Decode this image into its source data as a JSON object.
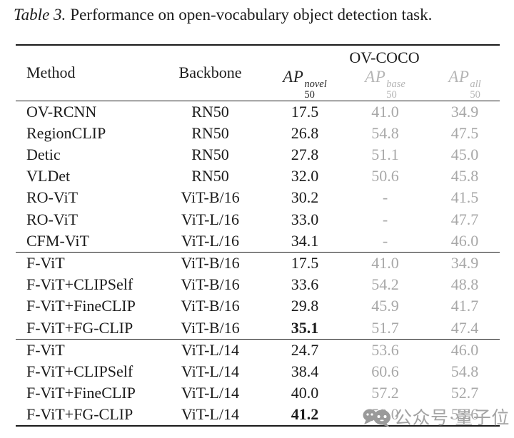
{
  "caption": {
    "label": "Table 3.",
    "text": "Performance on open-vocabulary object detection task."
  },
  "table": {
    "col_method": "Method",
    "col_backbone": "Backbone",
    "group_header": "OV-COCO",
    "ap_columns": [
      {
        "name": "AP",
        "sub": "50",
        "sup": "novel",
        "tone": "dark"
      },
      {
        "name": "AP",
        "sub": "50",
        "sup": "base",
        "tone": "gray"
      },
      {
        "name": "AP",
        "sub": "50",
        "sup": "all",
        "tone": "gray"
      }
    ],
    "sections": [
      {
        "rows": [
          {
            "method": "OV-RCNN",
            "backbone": "RN50",
            "ap_novel": "17.5",
            "ap_base": "41.0",
            "ap_all": "34.9",
            "bold_novel": false
          },
          {
            "method": "RegionCLIP",
            "backbone": "RN50",
            "ap_novel": "26.8",
            "ap_base": "54.8",
            "ap_all": "47.5",
            "bold_novel": false
          },
          {
            "method": "Detic",
            "backbone": "RN50",
            "ap_novel": "27.8",
            "ap_base": "51.1",
            "ap_all": "45.0",
            "bold_novel": false
          },
          {
            "method": "VLDet",
            "backbone": "RN50",
            "ap_novel": "32.0",
            "ap_base": "50.6",
            "ap_all": "45.8",
            "bold_novel": false
          },
          {
            "method": "RO-ViT",
            "backbone": "ViT-B/16",
            "ap_novel": "30.2",
            "ap_base": "-",
            "ap_all": "41.5",
            "bold_novel": false
          },
          {
            "method": "RO-ViT",
            "backbone": "ViT-L/16",
            "ap_novel": "33.0",
            "ap_base": "-",
            "ap_all": "47.7",
            "bold_novel": false
          },
          {
            "method": "CFM-ViT",
            "backbone": "ViT-L/16",
            "ap_novel": "34.1",
            "ap_base": "-",
            "ap_all": "46.0",
            "bold_novel": false
          }
        ]
      },
      {
        "rows": [
          {
            "method": "F-ViT",
            "backbone": "ViT-B/16",
            "ap_novel": "17.5",
            "ap_base": "41.0",
            "ap_all": "34.9",
            "bold_novel": false
          },
          {
            "method": "F-ViT+CLIPSelf",
            "backbone": "ViT-B/16",
            "ap_novel": "33.6",
            "ap_base": "54.2",
            "ap_all": "48.8",
            "bold_novel": false
          },
          {
            "method": "F-ViT+FineCLIP",
            "backbone": "ViT-B/16",
            "ap_novel": "29.8",
            "ap_base": "45.9",
            "ap_all": "41.7",
            "bold_novel": false
          },
          {
            "method": "F-ViT+FG-CLIP",
            "backbone": "ViT-B/16",
            "ap_novel": "35.1",
            "ap_base": "51.7",
            "ap_all": "47.4",
            "bold_novel": true
          }
        ]
      },
      {
        "rows": [
          {
            "method": "F-ViT",
            "backbone": "ViT-L/14",
            "ap_novel": "24.7",
            "ap_base": "53.6",
            "ap_all": "46.0",
            "bold_novel": false
          },
          {
            "method": "F-ViT+CLIPSelf",
            "backbone": "ViT-L/14",
            "ap_novel": "38.4",
            "ap_base": "60.6",
            "ap_all": "54.8",
            "bold_novel": false
          },
          {
            "method": "F-ViT+FineCLIP",
            "backbone": "ViT-L/14",
            "ap_novel": "40.0",
            "ap_base": "57.2",
            "ap_all": "52.7",
            "bold_novel": false
          },
          {
            "method": "F-ViT+FG-CLIP",
            "backbone": "ViT-L/14",
            "ap_novel": "41.2",
            "ap_base": "58.0",
            "ap_all": "53.6",
            "bold_novel": true
          }
        ]
      }
    ]
  },
  "watermark": {
    "icon": "chat-bubbles-icon",
    "text": "公众号·量子位"
  },
  "colors": {
    "text": "#1c1c1c",
    "muted_values": "#a8a8a8",
    "muted_headers": "#b5b5b5",
    "rule": "#1a1a1a",
    "watermark": "#a3a3a3",
    "background": "#ffffff"
  }
}
